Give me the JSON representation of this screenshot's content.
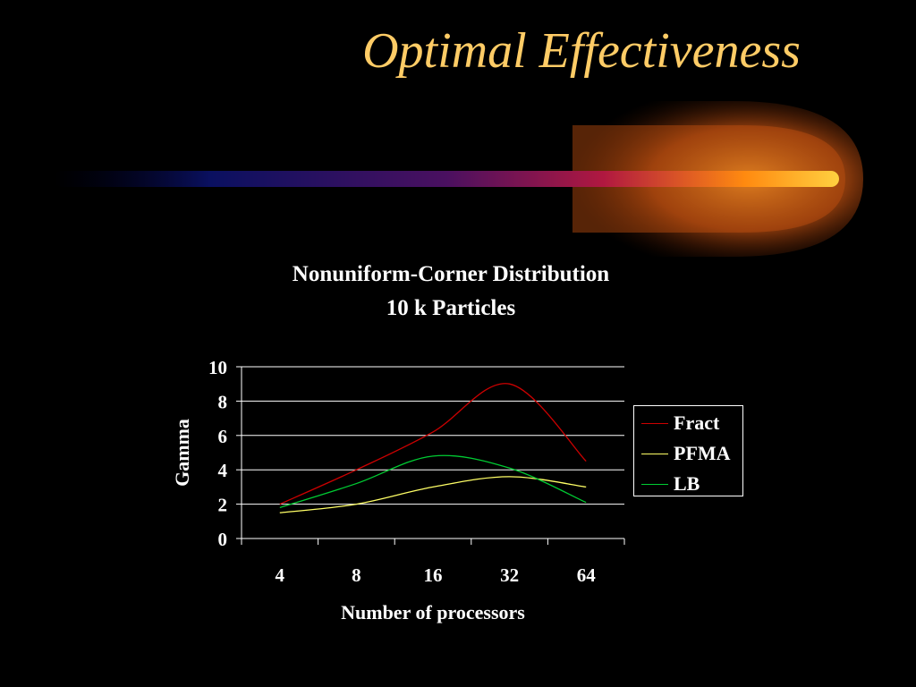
{
  "slide": {
    "title": "Optimal Effectiveness"
  },
  "chart_data": {
    "type": "line",
    "title": "Nonuniform-Corner Distribution",
    "subtitle": "10 k Particles",
    "xlabel": "Number of processors",
    "ylabel": "Gamma",
    "categories": [
      "4",
      "8",
      "16",
      "32",
      "64"
    ],
    "ylim": [
      0,
      10
    ],
    "yticks": [
      0,
      2,
      4,
      6,
      8,
      10
    ],
    "grid": true,
    "legend_position": "right",
    "series": [
      {
        "name": "Fract",
        "color": "#cc0000",
        "values": [
          2.0,
          4.0,
          6.2,
          9.0,
          4.5
        ]
      },
      {
        "name": "PFMA",
        "color": "#ffff66",
        "values": [
          1.5,
          2.0,
          3.0,
          3.6,
          3.0
        ]
      },
      {
        "name": "LB",
        "color": "#00cc33",
        "values": [
          1.8,
          3.2,
          4.8,
          4.1,
          2.1
        ]
      }
    ]
  }
}
